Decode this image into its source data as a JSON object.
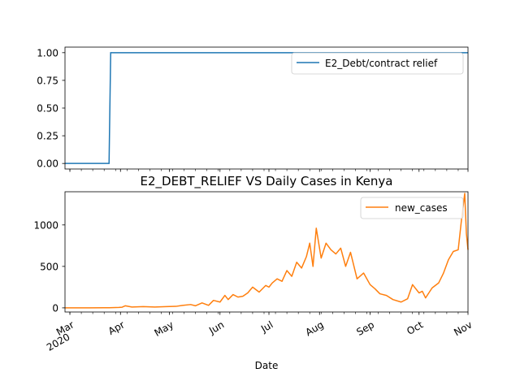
{
  "chart_data": [
    {
      "type": "line",
      "title": "",
      "xlabel": "",
      "ylabel": "",
      "ylim": [
        -0.05,
        1.05
      ],
      "yticks": [
        "0.00",
        "0.25",
        "0.50",
        "0.75",
        "1.00"
      ],
      "ytick_values": [
        0,
        0.25,
        0.5,
        0.75,
        1.0
      ],
      "legend": "top-right",
      "grid": false,
      "series": [
        {
          "name": "E2_Debt/contract relief",
          "color": "#1f77b4",
          "x": [
            "2020-02-27",
            "2020-03-25",
            "2020-03-26",
            "2020-10-31"
          ],
          "y": [
            0,
            0,
            1,
            1
          ]
        }
      ]
    },
    {
      "type": "line",
      "title": "E2_DEBT_RELIEF VS Daily Cases in Kenya",
      "xlabel": "Date",
      "ylabel": "",
      "ylim": [
        -50,
        1400
      ],
      "yticks": [
        "0",
        "500",
        "1000"
      ],
      "ytick_values": [
        0,
        500,
        1000
      ],
      "xlim": [
        "2020-02-27",
        "2020-10-31"
      ],
      "xticks": [
        {
          "date": "2020-03-01",
          "label": "Mar",
          "sub": "2020"
        },
        {
          "date": "2020-04-01",
          "label": "Apr",
          "sub": ""
        },
        {
          "date": "2020-05-01",
          "label": "May",
          "sub": ""
        },
        {
          "date": "2020-06-01",
          "label": "Jun",
          "sub": ""
        },
        {
          "date": "2020-07-01",
          "label": "Jul",
          "sub": ""
        },
        {
          "date": "2020-08-01",
          "label": "Aug",
          "sub": ""
        },
        {
          "date": "2020-09-01",
          "label": "Sep",
          "sub": ""
        },
        {
          "date": "2020-10-01",
          "label": "Oct",
          "sub": ""
        },
        {
          "date": "2020-11-01",
          "label": "Nov",
          "sub": ""
        }
      ],
      "legend": "top-right",
      "grid": false,
      "series": [
        {
          "name": "new_cases",
          "color": "#ff7f0e",
          "x": [
            "2020-02-27",
            "2020-03-13",
            "2020-03-25",
            "2020-03-31",
            "2020-04-02",
            "2020-04-04",
            "2020-04-08",
            "2020-04-15",
            "2020-04-22",
            "2020-04-29",
            "2020-05-05",
            "2020-05-09",
            "2020-05-14",
            "2020-05-17",
            "2020-05-21",
            "2020-05-25",
            "2020-05-28",
            "2020-06-01",
            "2020-06-04",
            "2020-06-06",
            "2020-06-09",
            "2020-06-12",
            "2020-06-15",
            "2020-06-18",
            "2020-06-21",
            "2020-06-25",
            "2020-06-29",
            "2020-07-01",
            "2020-07-03",
            "2020-07-06",
            "2020-07-09",
            "2020-07-12",
            "2020-07-15",
            "2020-07-18",
            "2020-07-21",
            "2020-07-24",
            "2020-07-26",
            "2020-07-28",
            "2020-07-30",
            "2020-08-02",
            "2020-08-05",
            "2020-08-08",
            "2020-08-11",
            "2020-08-14",
            "2020-08-17",
            "2020-08-20",
            "2020-08-24",
            "2020-08-28",
            "2020-09-01",
            "2020-09-04",
            "2020-09-07",
            "2020-09-11",
            "2020-09-15",
            "2020-09-20",
            "2020-09-24",
            "2020-09-27",
            "2020-10-01",
            "2020-10-03",
            "2020-10-05",
            "2020-10-09",
            "2020-10-13",
            "2020-10-16",
            "2020-10-19",
            "2020-10-22",
            "2020-10-25",
            "2020-10-27",
            "2020-10-29",
            "2020-10-30",
            "2020-10-31"
          ],
          "y": [
            0,
            0,
            2,
            5,
            8,
            25,
            10,
            15,
            10,
            15,
            18,
            30,
            40,
            25,
            60,
            30,
            90,
            70,
            150,
            100,
            160,
            130,
            140,
            180,
            250,
            190,
            270,
            250,
            300,
            350,
            320,
            450,
            380,
            550,
            480,
            620,
            780,
            500,
            960,
            600,
            780,
            700,
            650,
            720,
            500,
            670,
            350,
            420,
            280,
            230,
            170,
            150,
            100,
            70,
            110,
            280,
            180,
            200,
            120,
            240,
            300,
            420,
            580,
            680,
            700,
            1060,
            1380,
            900,
            700
          ]
        }
      ]
    }
  ]
}
